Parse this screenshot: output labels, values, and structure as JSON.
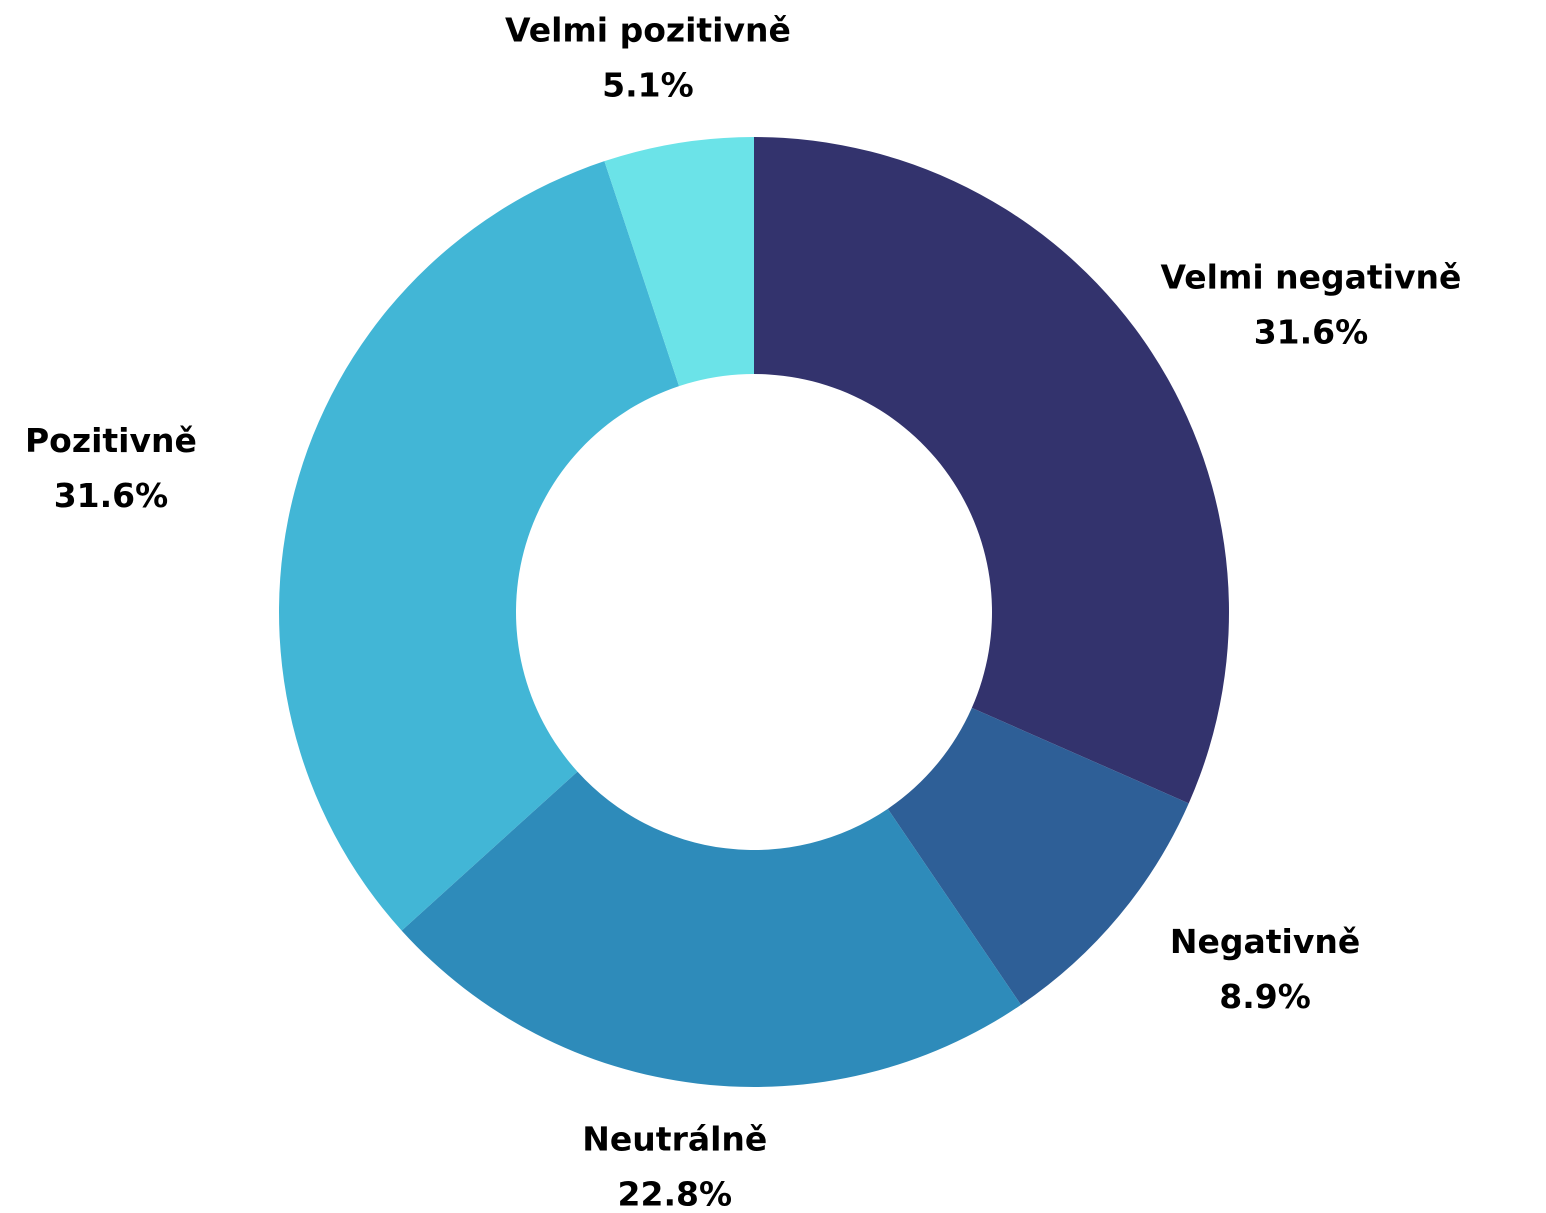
{
  "chart_data": {
    "type": "donut",
    "categories": [
      "Velmi negativně",
      "Negativně",
      "Neutrálně",
      "Pozitivně",
      "Velmi pozitivně"
    ],
    "values": [
      31.6,
      8.9,
      22.8,
      31.6,
      5.1
    ],
    "value_labels": [
      "31.6%",
      "8.9%",
      "22.8%",
      "31.6%",
      "5.1%"
    ],
    "colors": [
      "#33336d",
      "#2e5f97",
      "#2e8bba",
      "#42b6d6",
      "#6be3e8"
    ]
  }
}
